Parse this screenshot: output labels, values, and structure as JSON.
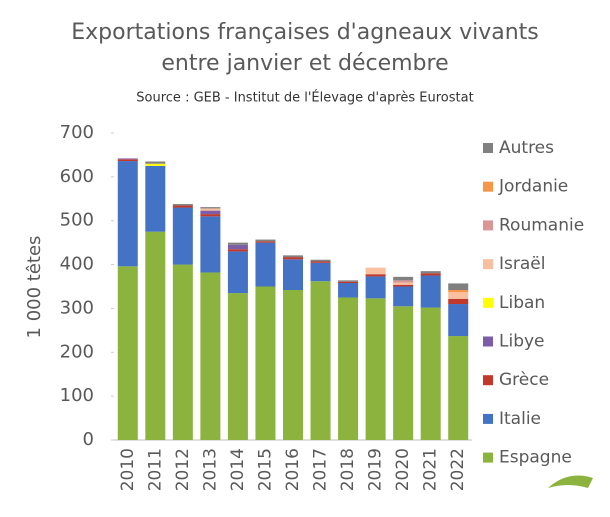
{
  "chart_data": {
    "type": "stacked_bar",
    "title": [
      "Exportations françaises d'agneaux vivants",
      "entre janvier et décembre"
    ],
    "subtitle": "Source : GEB - Institut de l'Élevage d'après Eurostat",
    "y_label": "1 000 têtes",
    "categories": [
      "2010",
      "2011",
      "2012",
      "2013",
      "2014",
      "2015",
      "2016",
      "2017",
      "2018",
      "2019",
      "2020",
      "2021",
      "2022"
    ],
    "series": [
      {
        "name": "Espagne",
        "color": "#8db33f",
        "values": [
          396,
          475,
          400,
          382,
          335,
          350,
          342,
          362,
          325,
          323,
          305,
          302,
          237
        ]
      },
      {
        "name": "Italie",
        "color": "#4472c4",
        "values": [
          240,
          150,
          130,
          128,
          95,
          100,
          70,
          42,
          33,
          50,
          45,
          73,
          73
        ]
      },
      {
        "name": "Grèce",
        "color": "#c0392b",
        "values": [
          4,
          0,
          5,
          5,
          5,
          3,
          5,
          3,
          3,
          5,
          4,
          5,
          12
        ]
      },
      {
        "name": "Libye",
        "color": "#7b5ea7",
        "values": [
          2,
          0,
          0,
          8,
          10,
          0,
          0,
          0,
          0,
          0,
          0,
          0,
          0
        ]
      },
      {
        "name": "Liban",
        "color": "#ffff00",
        "values": [
          0,
          5,
          0,
          0,
          0,
          0,
          0,
          0,
          0,
          0,
          0,
          0,
          0
        ]
      },
      {
        "name": "Israël",
        "color": "#f9c09f",
        "values": [
          0,
          0,
          0,
          5,
          0,
          0,
          0,
          0,
          0,
          15,
          5,
          0,
          15
        ]
      },
      {
        "name": "Roumanie",
        "color": "#d99694",
        "values": [
          0,
          0,
          0,
          0,
          0,
          0,
          0,
          0,
          0,
          0,
          5,
          0,
          0
        ]
      },
      {
        "name": "Jordanie",
        "color": "#f79646",
        "values": [
          0,
          0,
          0,
          0,
          0,
          0,
          0,
          0,
          0,
          0,
          0,
          0,
          5
        ]
      },
      {
        "name": "Autres",
        "color": "#808080",
        "values": [
          0,
          5,
          3,
          3,
          5,
          4,
          4,
          4,
          3,
          0,
          8,
          5,
          15
        ]
      }
    ],
    "ylim": [
      0,
      700
    ],
    "yticks": [
      0,
      100,
      200,
      300,
      400,
      500,
      600,
      700
    ],
    "legend": "right"
  }
}
